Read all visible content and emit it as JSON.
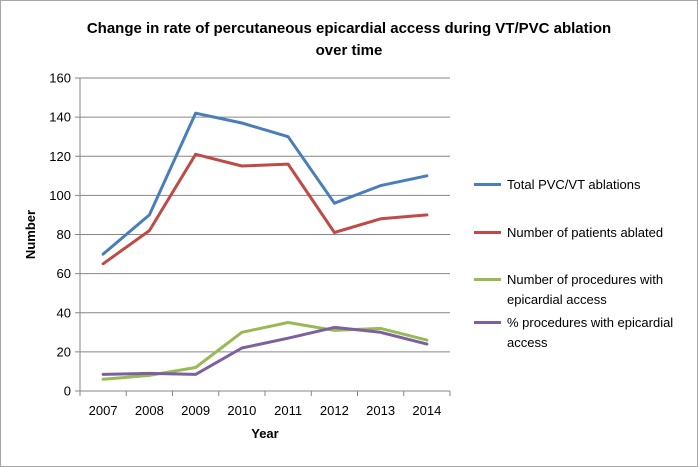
{
  "chart_data": {
    "type": "line",
    "title_lines": [
      "Change in rate of percutaneous epicardial access during VT/PVC ablation",
      "over time"
    ],
    "xlabel": "Year",
    "ylabel": "Number",
    "categories": [
      "2007",
      "2008",
      "2009",
      "2010",
      "2011",
      "2012",
      "2013",
      "2014"
    ],
    "ylim": [
      0,
      160
    ],
    "yticks": [
      "0",
      "20",
      "40",
      "60",
      "80",
      "100",
      "120",
      "140",
      "160"
    ],
    "grid": true,
    "legend_position": "right",
    "series": [
      {
        "name": "Total PVC/VT ablations",
        "color": "#4a7ebb",
        "values": [
          70,
          90,
          142,
          137,
          130,
          96,
          105,
          110
        ]
      },
      {
        "name": "Number of patients ablated",
        "color": "#be4b48",
        "values": [
          65,
          82,
          121,
          115,
          116,
          81,
          88,
          90
        ]
      },
      {
        "name": "Number of procedures with epicardial access",
        "color": "#98b954",
        "values": [
          6,
          8,
          12,
          30,
          35,
          31,
          32,
          26
        ]
      },
      {
        "name": "% procedures with epicardial access",
        "color": "#7d60a0",
        "values": [
          8.5,
          9,
          8.5,
          22,
          27,
          32.5,
          30,
          24
        ]
      }
    ]
  }
}
